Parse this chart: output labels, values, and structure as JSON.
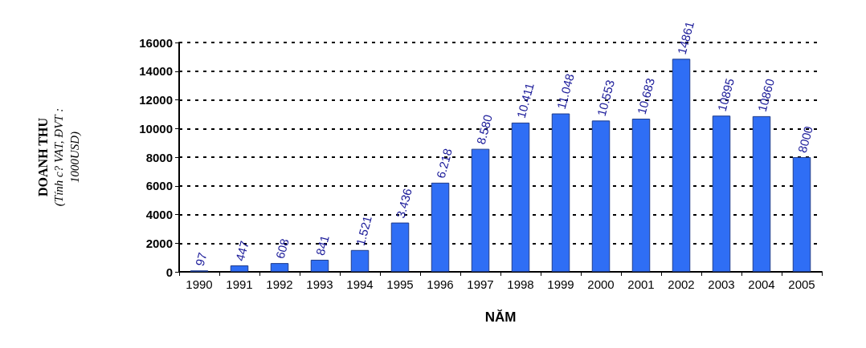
{
  "chart_data": {
    "type": "bar",
    "xlabel": "NĂM",
    "ylabel": "DOANH THU\n(Tính c? VAT, ĐVT :\n1000USD)",
    "categories": [
      "1990",
      "1991",
      "1992",
      "1993",
      "1994",
      "1995",
      "1996",
      "1997",
      "1998",
      "1999",
      "2000",
      "2001",
      "2002",
      "2003",
      "2004",
      "2005"
    ],
    "values": [
      97,
      447,
      608,
      841,
      1521,
      3436,
      6218,
      8580,
      10411,
      11048,
      10553,
      10683,
      14861,
      10895,
      10860,
      8000
    ],
    "value_labels": [
      "97",
      "447",
      "608",
      "841",
      "1.521",
      "3.436",
      "6.218",
      "8.580",
      "10.411",
      "11.048",
      "10.553",
      "10.683",
      "14861",
      "10895",
      "10860",
      "8000"
    ],
    "color": "#2f6ef5",
    "ylim": [
      0,
      16000
    ],
    "yticks": [
      0,
      2000,
      4000,
      6000,
      8000,
      10000,
      12000,
      14000,
      16000
    ],
    "grid": "y"
  }
}
